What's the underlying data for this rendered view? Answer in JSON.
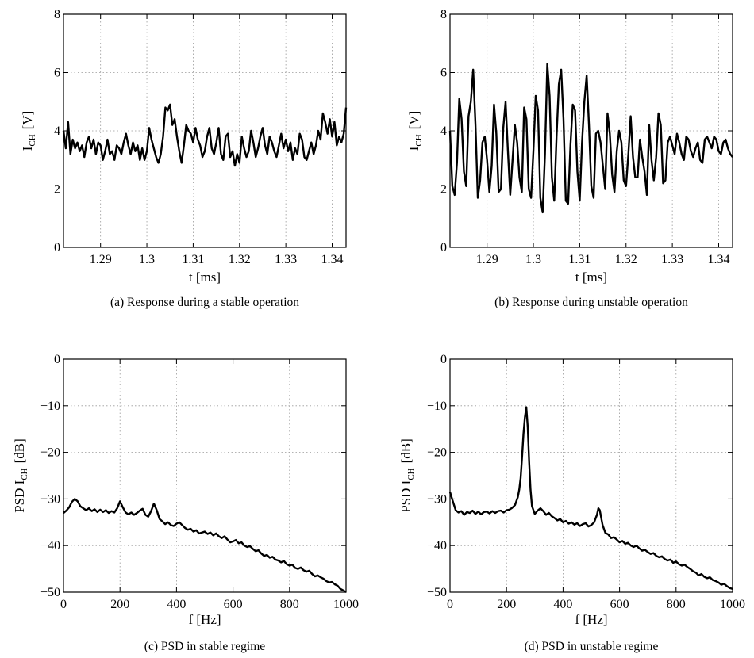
{
  "chart_data": [
    {
      "id": "a",
      "type": "line",
      "caption": "(a) Response during a stable operation",
      "xlabel": "t [ms]",
      "ylabel_main": "I",
      "ylabel_sub": "CH",
      "ylabel_unit": "[V]",
      "xlim": [
        1.282,
        1.343
      ],
      "ylim": [
        0,
        8
      ],
      "xticks": [
        1.29,
        1.3,
        1.31,
        1.32,
        1.33,
        1.34
      ],
      "xtick_labels": [
        "1.29",
        "1.3",
        "1.31",
        "1.32",
        "1.33",
        "1.34"
      ],
      "yticks": [
        0,
        2,
        4,
        6,
        8
      ],
      "ytick_labels": [
        "0",
        "2",
        "4",
        "6",
        "8"
      ],
      "grid": true,
      "series": [
        {
          "x": [
            1.282,
            1.2825,
            1.283,
            1.2835,
            1.284,
            1.2845,
            1.285,
            1.2855,
            1.286,
            1.2865,
            1.287,
            1.2875,
            1.288,
            1.2885,
            1.289,
            1.2895,
            1.29,
            1.2905,
            1.291,
            1.2915,
            1.292,
            1.2925,
            1.293,
            1.2935,
            1.294,
            1.2945,
            1.295,
            1.2955,
            1.296,
            1.2965,
            1.297,
            1.2975,
            1.298,
            1.2985,
            1.299,
            1.2995,
            1.3,
            1.3005,
            1.301,
            1.3015,
            1.302,
            1.3025,
            1.303,
            1.3035,
            1.304,
            1.3045,
            1.305,
            1.3055,
            1.306,
            1.3065,
            1.307,
            1.3075,
            1.308,
            1.3085,
            1.309,
            1.3095,
            1.31,
            1.3105,
            1.311,
            1.3115,
            1.312,
            1.3125,
            1.313,
            1.3135,
            1.314,
            1.3145,
            1.315,
            1.3155,
            1.316,
            1.3165,
            1.317,
            1.3175,
            1.318,
            1.3185,
            1.319,
            1.3195,
            1.32,
            1.3205,
            1.321,
            1.3215,
            1.322,
            1.3225,
            1.323,
            1.3235,
            1.324,
            1.3245,
            1.325,
            1.3255,
            1.326,
            1.3265,
            1.327,
            1.3275,
            1.328,
            1.3285,
            1.329,
            1.3295,
            1.33,
            1.3305,
            1.331,
            1.3315,
            1.332,
            1.3325,
            1.333,
            1.3335,
            1.334,
            1.3345,
            1.335,
            1.3355,
            1.336,
            1.3365,
            1.337,
            1.3375,
            1.338,
            1.3385,
            1.339,
            1.3395,
            1.34,
            1.3405,
            1.341,
            1.3415,
            1.342,
            1.3425,
            1.343
          ],
          "y": [
            4.0,
            3.4,
            4.3,
            3.2,
            3.7,
            3.4,
            3.6,
            3.3,
            3.5,
            3.1,
            3.6,
            3.8,
            3.4,
            3.7,
            3.2,
            3.6,
            3.5,
            3.0,
            3.3,
            3.7,
            3.2,
            3.3,
            3.0,
            3.5,
            3.4,
            3.2,
            3.6,
            3.9,
            3.5,
            3.2,
            3.6,
            3.3,
            3.5,
            3.0,
            3.4,
            3.0,
            3.3,
            4.1,
            3.7,
            3.4,
            3.1,
            2.9,
            3.2,
            3.8,
            4.8,
            4.7,
            4.9,
            4.2,
            4.4,
            3.8,
            3.3,
            2.9,
            3.5,
            4.2,
            4.0,
            3.9,
            3.6,
            4.1,
            3.7,
            3.5,
            3.1,
            3.3,
            3.8,
            4.1,
            3.4,
            3.2,
            3.6,
            4.1,
            3.2,
            3.0,
            3.8,
            3.9,
            3.1,
            3.3,
            2.8,
            3.2,
            2.9,
            3.8,
            3.4,
            3.1,
            3.3,
            4.0,
            3.6,
            3.1,
            3.4,
            3.8,
            4.1,
            3.5,
            3.2,
            3.8,
            3.6,
            3.3,
            3.1,
            3.5,
            3.9,
            3.4,
            3.7,
            3.3,
            3.6,
            3.0,
            3.4,
            3.2,
            3.9,
            3.7,
            3.1,
            3.0,
            3.3,
            3.6,
            3.2,
            3.5,
            4.0,
            3.7,
            4.6,
            4.3,
            3.9,
            4.4,
            3.8,
            4.3,
            3.5,
            3.8,
            3.6,
            3.9,
            4.8
          ]
        }
      ]
    },
    {
      "id": "b",
      "type": "line",
      "caption": "(b) Response during unstable operation",
      "xlabel": "t [ms]",
      "ylabel_main": "I",
      "ylabel_sub": "CH",
      "ylabel_unit": "[V]",
      "xlim": [
        1.282,
        1.343
      ],
      "ylim": [
        0,
        8
      ],
      "xticks": [
        1.29,
        1.3,
        1.31,
        1.32,
        1.33,
        1.34
      ],
      "xtick_labels": [
        "1.29",
        "1.3",
        "1.31",
        "1.32",
        "1.33",
        "1.34"
      ],
      "yticks": [
        0,
        2,
        4,
        6,
        8
      ],
      "ytick_labels": [
        "0",
        "2",
        "4",
        "6",
        "8"
      ],
      "grid": true,
      "series": [
        {
          "x": [
            1.282,
            1.2825,
            1.283,
            1.2835,
            1.284,
            1.2845,
            1.285,
            1.2855,
            1.286,
            1.2865,
            1.287,
            1.2875,
            1.288,
            1.2885,
            1.289,
            1.2895,
            1.29,
            1.2905,
            1.291,
            1.2915,
            1.292,
            1.2925,
            1.293,
            1.2935,
            1.294,
            1.2945,
            1.295,
            1.2955,
            1.296,
            1.2965,
            1.297,
            1.2975,
            1.298,
            1.2985,
            1.299,
            1.2995,
            1.3,
            1.3005,
            1.301,
            1.3015,
            1.302,
            1.3025,
            1.303,
            1.3035,
            1.304,
            1.3045,
            1.305,
            1.3055,
            1.306,
            1.3065,
            1.307,
            1.3075,
            1.308,
            1.3085,
            1.309,
            1.3095,
            1.31,
            1.3105,
            1.311,
            1.3115,
            1.312,
            1.3125,
            1.313,
            1.3135,
            1.314,
            1.3145,
            1.315,
            1.3155,
            1.316,
            1.3165,
            1.317,
            1.3175,
            1.318,
            1.3185,
            1.319,
            1.3195,
            1.32,
            1.3205,
            1.321,
            1.3215,
            1.322,
            1.3225,
            1.323,
            1.3235,
            1.324,
            1.3245,
            1.325,
            1.3255,
            1.326,
            1.3265,
            1.327,
            1.3275,
            1.328,
            1.3285,
            1.329,
            1.3295,
            1.33,
            1.3305,
            1.331,
            1.3315,
            1.332,
            1.3325,
            1.333,
            1.3335,
            1.334,
            1.3345,
            1.335,
            1.3355,
            1.336,
            1.3365,
            1.337,
            1.3375,
            1.338,
            1.3385,
            1.339,
            1.3395,
            1.34,
            1.3405,
            1.341,
            1.3415,
            1.342,
            1.3425,
            1.343
          ],
          "y": [
            4.0,
            2.1,
            1.8,
            2.9,
            5.1,
            4.4,
            2.6,
            2.1,
            4.5,
            5.0,
            6.1,
            4.2,
            1.7,
            2.3,
            3.6,
            3.8,
            3.0,
            1.9,
            2.8,
            4.9,
            3.9,
            1.9,
            2.0,
            4.1,
            5.0,
            3.3,
            1.8,
            3.0,
            4.2,
            3.6,
            2.4,
            1.9,
            4.8,
            4.4,
            2.0,
            1.7,
            3.3,
            5.2,
            4.7,
            1.7,
            1.2,
            3.2,
            6.3,
            5.2,
            2.4,
            1.6,
            3.8,
            5.6,
            6.1,
            4.4,
            1.6,
            1.5,
            3.5,
            4.9,
            4.7,
            2.6,
            1.6,
            3.6,
            5.0,
            5.9,
            4.2,
            2.1,
            1.7,
            3.9,
            4.0,
            3.6,
            2.8,
            2.0,
            4.6,
            3.9,
            2.5,
            1.9,
            3.3,
            4.0,
            3.6,
            2.3,
            2.1,
            3.2,
            4.5,
            3.1,
            2.4,
            2.4,
            3.7,
            3.1,
            2.6,
            1.8,
            4.2,
            3.0,
            2.3,
            3.1,
            4.6,
            4.2,
            2.2,
            2.3,
            3.6,
            3.8,
            3.5,
            3.2,
            3.9,
            3.6,
            3.2,
            3.0,
            3.8,
            3.7,
            3.3,
            3.1,
            3.4,
            3.6,
            3.0,
            2.9,
            3.7,
            3.8,
            3.6,
            3.4,
            3.8,
            3.7,
            3.3,
            3.2,
            3.6,
            3.7,
            3.4,
            3.2,
            3.1
          ]
        }
      ]
    },
    {
      "id": "c",
      "type": "line",
      "caption": "(c) PSD in stable regime",
      "xlabel": "f [Hz]",
      "ylabel_main": "PSD I",
      "ylabel_sub": "CH",
      "ylabel_unit": "[dB]",
      "xlim": [
        0,
        1000
      ],
      "ylim": [
        -50,
        0
      ],
      "xticks": [
        0,
        200,
        400,
        600,
        800,
        1000
      ],
      "xtick_labels": [
        "0",
        "200",
        "400",
        "600",
        "800",
        "1000"
      ],
      "yticks": [
        -50,
        -40,
        -30,
        -20,
        -10,
        0
      ],
      "ytick_labels": [
        "−50",
        "−40",
        "−30",
        "−20",
        "−10",
        "0"
      ],
      "grid": true,
      "series": [
        {
          "x": [
            0,
            10,
            20,
            30,
            40,
            50,
            60,
            70,
            80,
            90,
            100,
            110,
            120,
            130,
            140,
            150,
            160,
            170,
            180,
            190,
            200,
            210,
            220,
            230,
            240,
            250,
            260,
            270,
            280,
            290,
            300,
            310,
            320,
            330,
            340,
            350,
            360,
            370,
            380,
            390,
            400,
            410,
            420,
            430,
            440,
            450,
            460,
            470,
            480,
            490,
            500,
            510,
            520,
            530,
            540,
            550,
            560,
            570,
            580,
            590,
            600,
            610,
            620,
            630,
            640,
            650,
            660,
            670,
            680,
            690,
            700,
            710,
            720,
            730,
            740,
            750,
            760,
            770,
            780,
            790,
            800,
            810,
            820,
            830,
            840,
            850,
            860,
            870,
            880,
            890,
            900,
            910,
            920,
            930,
            940,
            950,
            960,
            970,
            980,
            990,
            1000
          ],
          "y": [
            -33.0,
            -32.5,
            -31.8,
            -30.6,
            -30.0,
            -30.5,
            -31.6,
            -32.0,
            -32.4,
            -32.0,
            -32.6,
            -32.2,
            -32.8,
            -32.3,
            -32.8,
            -32.4,
            -33.0,
            -32.6,
            -32.9,
            -32.0,
            -30.5,
            -31.8,
            -32.9,
            -33.3,
            -32.9,
            -33.4,
            -33.0,
            -32.5,
            -32.1,
            -33.4,
            -33.8,
            -32.6,
            -31.0,
            -32.4,
            -34.3,
            -34.8,
            -35.4,
            -35.0,
            -35.6,
            -35.8,
            -35.3,
            -35.0,
            -35.6,
            -36.2,
            -36.6,
            -36.4,
            -37.0,
            -36.7,
            -37.4,
            -37.2,
            -37.0,
            -37.5,
            -37.2,
            -37.8,
            -37.4,
            -38.0,
            -38.4,
            -38.0,
            -38.7,
            -39.3,
            -39.1,
            -38.8,
            -39.5,
            -39.3,
            -40.0,
            -40.3,
            -40.1,
            -40.7,
            -41.2,
            -41.0,
            -41.7,
            -42.2,
            -42.0,
            -42.6,
            -42.4,
            -43.0,
            -43.2,
            -43.6,
            -43.3,
            -44.0,
            -44.3,
            -44.1,
            -44.8,
            -45.0,
            -44.7,
            -45.3,
            -45.6,
            -45.4,
            -46.1,
            -46.6,
            -46.4,
            -46.8,
            -47.1,
            -47.6,
            -47.9,
            -47.8,
            -48.3,
            -48.6,
            -49.3,
            -49.6,
            -50.0
          ]
        }
      ]
    },
    {
      "id": "d",
      "type": "line",
      "caption": "(d) PSD in unstable regime",
      "xlabel": "f [Hz]",
      "ylabel_main": "PSD I",
      "ylabel_sub": "CH",
      "ylabel_unit": "[dB]",
      "xlim": [
        0,
        1000
      ],
      "ylim": [
        -50,
        0
      ],
      "xticks": [
        0,
        200,
        400,
        600,
        800,
        1000
      ],
      "xtick_labels": [
        "0",
        "200",
        "400",
        "600",
        "800",
        "1000"
      ],
      "yticks": [
        -50,
        -40,
        -30,
        -20,
        -10,
        0
      ],
      "ytick_labels": [
        "−50",
        "−40",
        "−30",
        "−20",
        "−10",
        "0"
      ],
      "grid": true,
      "series": [
        {
          "x": [
            0,
            10,
            20,
            30,
            40,
            50,
            60,
            70,
            80,
            90,
            100,
            110,
            120,
            130,
            140,
            150,
            160,
            170,
            180,
            190,
            200,
            210,
            220,
            230,
            240,
            245,
            250,
            255,
            260,
            265,
            270,
            275,
            280,
            285,
            290,
            300,
            310,
            320,
            330,
            340,
            350,
            360,
            370,
            380,
            390,
            400,
            410,
            420,
            430,
            440,
            450,
            460,
            470,
            480,
            490,
            500,
            510,
            520,
            525,
            530,
            535,
            540,
            550,
            560,
            570,
            580,
            590,
            600,
            610,
            620,
            630,
            640,
            650,
            660,
            670,
            680,
            690,
            700,
            710,
            720,
            730,
            740,
            750,
            760,
            770,
            780,
            790,
            800,
            810,
            820,
            830,
            840,
            850,
            860,
            870,
            880,
            890,
            900,
            910,
            920,
            930,
            940,
            950,
            960,
            970,
            980,
            990,
            1000
          ],
          "y": [
            -28.5,
            -30.5,
            -32.4,
            -32.9,
            -32.6,
            -33.4,
            -32.8,
            -33.0,
            -32.5,
            -33.2,
            -32.7,
            -33.3,
            -32.8,
            -32.7,
            -33.1,
            -32.6,
            -33.0,
            -32.6,
            -32.5,
            -32.9,
            -32.4,
            -32.3,
            -31.9,
            -31.3,
            -29.6,
            -28.0,
            -25.5,
            -21.0,
            -16.0,
            -12.5,
            -10.3,
            -14.5,
            -22.0,
            -28.0,
            -31.5,
            -33.2,
            -32.5,
            -32.0,
            -32.6,
            -33.4,
            -33.0,
            -33.7,
            -34.1,
            -34.6,
            -34.3,
            -35.0,
            -34.7,
            -35.3,
            -35.0,
            -35.5,
            -35.2,
            -35.8,
            -35.4,
            -35.2,
            -35.9,
            -35.6,
            -35.0,
            -33.4,
            -32.0,
            -32.4,
            -34.0,
            -35.6,
            -37.3,
            -37.6,
            -38.4,
            -38.2,
            -38.7,
            -39.3,
            -39.0,
            -39.6,
            -39.4,
            -40.0,
            -40.3,
            -40.0,
            -40.6,
            -41.1,
            -40.9,
            -41.4,
            -41.8,
            -41.6,
            -42.2,
            -42.5,
            -42.3,
            -42.9,
            -43.2,
            -43.0,
            -43.7,
            -43.4,
            -44.0,
            -44.3,
            -44.1,
            -44.6,
            -45.0,
            -45.5,
            -45.8,
            -46.4,
            -46.1,
            -46.7,
            -47.0,
            -46.8,
            -47.4,
            -47.6,
            -47.9,
            -48.4,
            -48.2,
            -48.7,
            -49.1,
            -49.3
          ]
        }
      ]
    }
  ]
}
